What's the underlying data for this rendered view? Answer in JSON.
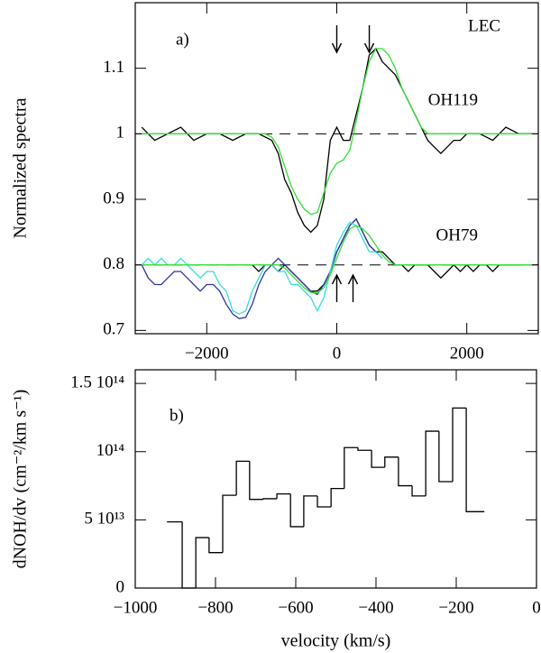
{
  "chart_data": [
    {
      "type": "line",
      "ylabel": "Normalized spectra",
      "xlim": [
        -3100,
        3100
      ],
      "ylim": [
        0.695,
        1.2
      ],
      "xticks": [
        {
          "value": -2000,
          "label": "−2000"
        },
        0,
        2000
      ],
      "yticks": [
        0.7,
        0.8,
        0.9,
        1,
        1.1
      ],
      "reference_lines": [
        1,
        0.8
      ],
      "arrows_down": [
        0,
        500
      ],
      "arrows_up": [
        0,
        250
      ],
      "annotations": [
        "a)",
        "LEC",
        "OH119",
        "OH79"
      ],
      "series": [
        {
          "color": "#000000",
          "x": [
            -3000,
            -2800,
            -2600,
            -2400,
            -2200,
            -2000,
            -1800,
            -1600,
            -1400,
            -1200,
            -1000,
            -900,
            -800,
            -700,
            -600,
            -500,
            -400,
            -300,
            -200,
            -100,
            0,
            100,
            200,
            300,
            400,
            500,
            600,
            700,
            800,
            900,
            1000,
            1100,
            1200,
            1300,
            1400,
            1500,
            1600,
            1700,
            1800,
            1900,
            2000,
            2200,
            2400,
            2600,
            2800,
            3000
          ],
          "values": [
            1.01,
            0.99,
            1.0,
            1.01,
            0.99,
            1.0,
            1.0,
            0.99,
            1.0,
            1.0,
            0.99,
            0.97,
            0.93,
            0.91,
            0.88,
            0.86,
            0.85,
            0.86,
            0.9,
            0.99,
            1.01,
            0.99,
            0.99,
            1.03,
            1.07,
            1.12,
            1.13,
            1.11,
            1.1,
            1.09,
            1.07,
            1.05,
            1.03,
            1.01,
            0.99,
            0.98,
            0.97,
            0.98,
            0.99,
            0.99,
            1.0,
            1.0,
            0.99,
            1.01,
            1.0,
            1.0
          ]
        },
        {
          "color": "#33dd33",
          "x": [
            -3000,
            -1100,
            -1000,
            -900,
            -800,
            -700,
            -600,
            -500,
            -400,
            -300,
            -200,
            -100,
            0,
            100,
            200,
            300,
            400,
            500,
            600,
            700,
            800,
            900,
            1000,
            1100,
            1200,
            1300,
            1400,
            3000
          ],
          "values": [
            1.0,
            1.0,
            0.995,
            0.98,
            0.95,
            0.92,
            0.9,
            0.885,
            0.877,
            0.88,
            0.91,
            0.94,
            0.955,
            0.96,
            0.975,
            1.02,
            1.07,
            1.11,
            1.13,
            1.13,
            1.12,
            1.1,
            1.07,
            1.05,
            1.03,
            1.01,
            1.0,
            1.0
          ]
        },
        {
          "color": "#000000",
          "x": [
            -1300,
            -1200,
            -1100,
            -1000,
            -900,
            -800,
            -700,
            -600,
            -500,
            -400,
            -300,
            -200,
            -100,
            0,
            100,
            200,
            300,
            400,
            500,
            600,
            700,
            800,
            900,
            1000,
            1100,
            1200,
            1300,
            1400,
            1500,
            1600,
            1700,
            1800,
            1900,
            2000,
            2100,
            2200,
            2300,
            2400,
            2500,
            2600,
            2700,
            2800
          ],
          "values": [
            0.8,
            0.79,
            0.8,
            0.8,
            0.79,
            0.8,
            0.79,
            0.78,
            0.77,
            0.76,
            0.76,
            0.77,
            0.79,
            0.82,
            0.84,
            0.86,
            0.87,
            0.85,
            0.83,
            0.82,
            0.82,
            0.81,
            0.8,
            0.8,
            0.79,
            0.8,
            0.8,
            0.8,
            0.79,
            0.78,
            0.79,
            0.8,
            0.79,
            0.8,
            0.79,
            0.8,
            0.8,
            0.79,
            0.8,
            0.8,
            0.8,
            0.8
          ]
        },
        {
          "color": "#3333aa",
          "x": [
            -3000,
            -2900,
            -2800,
            -2700,
            -2600,
            -2500,
            -2400,
            -2300,
            -2200,
            -2100,
            -2000,
            -1900,
            -1800,
            -1700,
            -1600,
            -1500,
            -1400,
            -1300,
            -1200,
            -1100,
            -1000,
            -900,
            -800,
            -700,
            -600,
            -500,
            -400,
            -300,
            -200,
            -100,
            0,
            100,
            200,
            300,
            400,
            500,
            600,
            700
          ],
          "values": [
            0.8,
            0.78,
            0.77,
            0.77,
            0.78,
            0.79,
            0.79,
            0.78,
            0.77,
            0.76,
            0.77,
            0.77,
            0.76,
            0.74,
            0.725,
            0.718,
            0.72,
            0.74,
            0.77,
            0.79,
            0.8,
            0.81,
            0.8,
            0.79,
            0.78,
            0.77,
            0.76,
            0.755,
            0.77,
            0.79,
            0.82,
            0.84,
            0.86,
            0.87,
            0.85,
            0.83,
            0.82,
            0.81
          ]
        },
        {
          "color": "#33dddd",
          "x": [
            -3000,
            -2900,
            -2800,
            -2700,
            -2600,
            -2500,
            -2400,
            -2300,
            -2200,
            -2100,
            -2000,
            -1900,
            -1800,
            -1700,
            -1600,
            -1500,
            -1400,
            -1300,
            -1200,
            -1100,
            -1000,
            -900,
            -800,
            -700,
            -600,
            -500,
            -400,
            -300,
            -200,
            -100,
            0,
            100,
            200,
            300,
            400,
            500,
            600,
            700
          ],
          "values": [
            0.8,
            0.81,
            0.8,
            0.81,
            0.8,
            0.8,
            0.81,
            0.8,
            0.79,
            0.78,
            0.79,
            0.79,
            0.77,
            0.76,
            0.73,
            0.725,
            0.73,
            0.76,
            0.78,
            0.8,
            0.8,
            0.79,
            0.79,
            0.77,
            0.77,
            0.76,
            0.75,
            0.73,
            0.75,
            0.79,
            0.83,
            0.85,
            0.865,
            0.86,
            0.84,
            0.82,
            0.82,
            0.81
          ]
        },
        {
          "color": "#33dd33",
          "x": [
            -3000,
            -900,
            -800,
            -700,
            -600,
            -500,
            -400,
            -300,
            -200,
            -100,
            0,
            100,
            200,
            300,
            400,
            500,
            600,
            700,
            800,
            900,
            3000
          ],
          "values": [
            0.8,
            0.8,
            0.795,
            0.785,
            0.775,
            0.765,
            0.758,
            0.757,
            0.765,
            0.785,
            0.81,
            0.835,
            0.855,
            0.86,
            0.855,
            0.845,
            0.83,
            0.815,
            0.805,
            0.8,
            0.8
          ]
        }
      ]
    },
    {
      "type": "histogram",
      "xlabel": "velocity (km/s)",
      "ylabel": "dNOH/dv (cm⁻²/km s⁻¹)",
      "xlim": [
        -1000,
        0
      ],
      "ylim": [
        0,
        160000000000000.0
      ],
      "xticks": [
        {
          "value": -1000,
          "label": "−1000"
        },
        {
          "value": -800,
          "label": "−800"
        },
        {
          "value": -600,
          "label": "−600"
        },
        {
          "value": -400,
          "label": "−400"
        },
        {
          "value": -200,
          "label": "−200"
        },
        0
      ],
      "yticks": [
        0,
        {
          "value": 50000000000000.0,
          "label": "5 10¹³"
        },
        {
          "value": 100000000000000.0,
          "label": "10¹⁴"
        },
        {
          "value": 150000000000000.0,
          "label": "1.5 10¹⁴"
        }
      ],
      "annotations": [
        "b)"
      ],
      "color": "#000000",
      "bins": [
        -921,
        -883,
        -849,
        -816,
        -782,
        -748,
        -715,
        -681,
        -647,
        -613,
        -580,
        -546,
        -512,
        -479,
        -445,
        -411,
        -378,
        -344,
        -310,
        -276,
        -243,
        -209,
        -175,
        -130
      ],
      "values": [
        48500000000000.0,
        0,
        37000000000000.0,
        26000000000000.0,
        68000000000000.0,
        93000000000000.0,
        65000000000000.0,
        65500000000000.0,
        69000000000000.0,
        45000000000000.0,
        67500000000000.0,
        59500000000000.0,
        73000000000000.0,
        103000000000000.0,
        101000000000000.0,
        88500000000000.0,
        96000000000000.0,
        75000000000000.0,
        67500000000000.0,
        115000000000000.0,
        78000000000000.0,
        132000000000000.0,
        56000000000000.0
      ]
    }
  ]
}
